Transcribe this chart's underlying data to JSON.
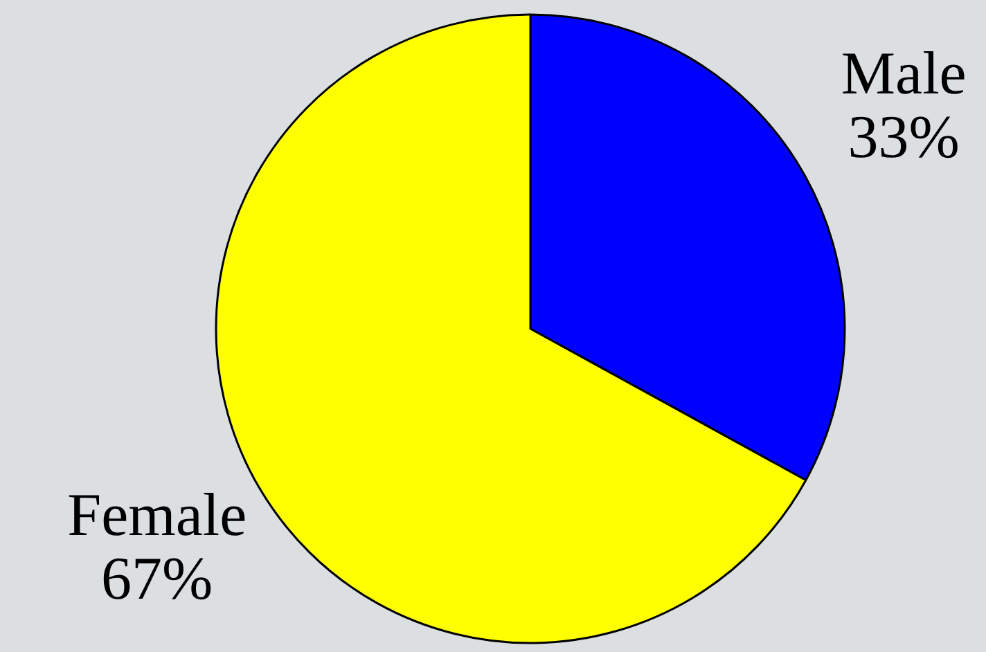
{
  "chart_data": {
    "type": "pie",
    "categories": [
      "Male",
      "Female"
    ],
    "values": [
      33,
      67
    ],
    "colors": [
      "#0000ff",
      "#ffff00"
    ],
    "value_labels": [
      "33%",
      "67%"
    ],
    "legend": false
  }
}
